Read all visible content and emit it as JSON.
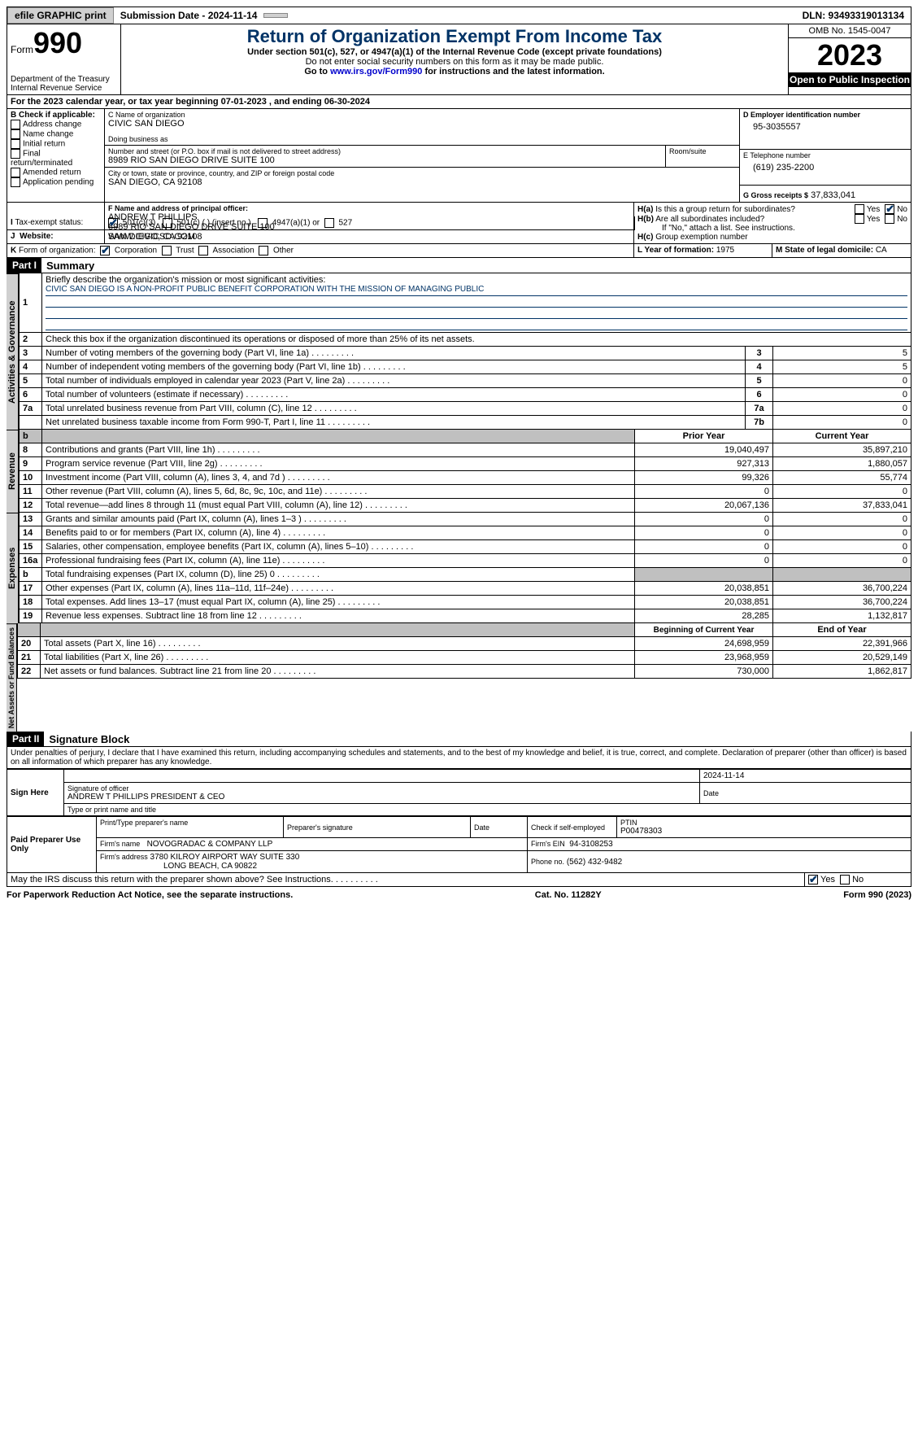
{
  "topbar": {
    "efile": "efile GRAPHIC print",
    "submission_label": "Submission Date - 2024-11-14",
    "dln_label": "DLN: 93493319013134"
  },
  "header": {
    "form_prefix": "Form",
    "form_no": "990",
    "dept1": "Department of the Treasury",
    "dept2": "Internal Revenue Service",
    "title": "Return of Organization Exempt From Income Tax",
    "sub1": "Under section 501(c), 527, or 4947(a)(1) of the Internal Revenue Code (except private foundations)",
    "sub2": "Do not enter social security numbers on this form as it may be made public.",
    "sub3_pre": "Go to ",
    "sub3_link": "www.irs.gov/Form990",
    "sub3_post": " for instructions and the latest information.",
    "omb": "OMB No. 1545-0047",
    "year": "2023",
    "inspect": "Open to Public Inspection"
  },
  "A": {
    "text": "For the 2023 calendar year, or tax year beginning 07-01-2023   , and ending 06-30-2024"
  },
  "B": {
    "label": "B Check if applicable:",
    "opts": [
      "Address change",
      "Name change",
      "Initial return",
      "Final return/terminated",
      "Amended return",
      "Application pending"
    ]
  },
  "C": {
    "name_label": "C Name of organization",
    "name": "CIVIC SAN DIEGO",
    "dba_label": "Doing business as",
    "street_label": "Number and street (or P.O. box if mail is not delivered to street address)",
    "room_label": "Room/suite",
    "street": "8989 RIO SAN DIEGO DRIVE SUITE 100",
    "city_label": "City or town, state or province, country, and ZIP or foreign postal code",
    "city": "SAN DIEGO, CA  92108"
  },
  "D": {
    "label": "D Employer identification number",
    "val": "95-3035557"
  },
  "E": {
    "label": "E Telephone number",
    "val": "(619) 235-2200"
  },
  "G": {
    "label": "G Gross receipts $",
    "val": "37,833,041"
  },
  "F": {
    "label": "F  Name and address of principal officer:",
    "name": "ANDREW T PHILLIPS",
    "street": "8989 RIO SAN DIEGO DRIVE SUITE 100",
    "city": "SAN DIEGO, CA  92108"
  },
  "H": {
    "a": "Is this a group return for subordinates?",
    "b": "Are all subordinates included?",
    "note": "If \"No,\" attach a list. See instructions.",
    "c": "Group exemption number"
  },
  "I": {
    "label": "Tax-exempt status:",
    "o1": "501(c)(3)",
    "o2": "501(c) (  ) (insert no.)",
    "o3": "4947(a)(1) or",
    "o4": "527"
  },
  "J": {
    "label": "Website:",
    "val": "WWW.CIVICSD.COM"
  },
  "K": {
    "label": "Form of organization:",
    "o1": "Corporation",
    "o2": "Trust",
    "o3": "Association",
    "o4": "Other"
  },
  "L": {
    "label": "L Year of formation:",
    "val": "1975"
  },
  "M": {
    "label": "M State of legal domicile:",
    "val": "CA"
  },
  "partI": {
    "hdr": "Part I",
    "title": "Summary",
    "l1a": "Briefly describe the organization's mission or most significant activities:",
    "l1b": "CIVIC SAN DIEGO IS A NON-PROFIT PUBLIC BENEFIT CORPORATION WITH THE MISSION OF MANAGING PUBLIC",
    "l2": "Check this box        if the organization discontinued its operations or disposed of more than 25% of its net assets.",
    "rows_gov": [
      {
        "n": "3",
        "d": "Number of voting members of the governing body (Part VI, line 1a)",
        "k": "3",
        "v": "5"
      },
      {
        "n": "4",
        "d": "Number of independent voting members of the governing body (Part VI, line 1b)",
        "k": "4",
        "v": "5"
      },
      {
        "n": "5",
        "d": "Total number of individuals employed in calendar year 2023 (Part V, line 2a)",
        "k": "5",
        "v": "0"
      },
      {
        "n": "6",
        "d": "Total number of volunteers (estimate if necessary)",
        "k": "6",
        "v": "0"
      },
      {
        "n": "7a",
        "d": "Total unrelated business revenue from Part VIII, column (C), line 12",
        "k": "7a",
        "v": "0"
      },
      {
        "n": "",
        "d": "Net unrelated business taxable income from Form 990-T, Part I, line 11",
        "k": "7b",
        "v": "0"
      }
    ],
    "hdr_prior": "Prior Year",
    "hdr_curr": "Current Year",
    "rows_rev": [
      {
        "n": "8",
        "d": "Contributions and grants (Part VIII, line 1h)",
        "p": "19,040,497",
        "c": "35,897,210"
      },
      {
        "n": "9",
        "d": "Program service revenue (Part VIII, line 2g)",
        "p": "927,313",
        "c": "1,880,057"
      },
      {
        "n": "10",
        "d": "Investment income (Part VIII, column (A), lines 3, 4, and 7d )",
        "p": "99,326",
        "c": "55,774"
      },
      {
        "n": "11",
        "d": "Other revenue (Part VIII, column (A), lines 5, 6d, 8c, 9c, 10c, and 11e)",
        "p": "0",
        "c": "0"
      },
      {
        "n": "12",
        "d": "Total revenue—add lines 8 through 11 (must equal Part VIII, column (A), line 12)",
        "p": "20,067,136",
        "c": "37,833,041"
      }
    ],
    "rows_exp": [
      {
        "n": "13",
        "d": "Grants and similar amounts paid (Part IX, column (A), lines 1–3 )",
        "p": "0",
        "c": "0"
      },
      {
        "n": "14",
        "d": "Benefits paid to or for members (Part IX, column (A), line 4)",
        "p": "0",
        "c": "0"
      },
      {
        "n": "15",
        "d": "Salaries, other compensation, employee benefits (Part IX, column (A), lines 5–10)",
        "p": "0",
        "c": "0"
      },
      {
        "n": "16a",
        "d": "Professional fundraising fees (Part IX, column (A), line 11e)",
        "p": "0",
        "c": "0"
      },
      {
        "n": "b",
        "d": "Total fundraising expenses (Part IX, column (D), line 25) 0",
        "p": "",
        "c": "",
        "shade": true
      },
      {
        "n": "17",
        "d": "Other expenses (Part IX, column (A), lines 11a–11d, 11f–24e)",
        "p": "20,038,851",
        "c": "36,700,224"
      },
      {
        "n": "18",
        "d": "Total expenses. Add lines 13–17 (must equal Part IX, column (A), line 25)",
        "p": "20,038,851",
        "c": "36,700,224"
      },
      {
        "n": "19",
        "d": "Revenue less expenses. Subtract line 18 from line 12",
        "p": "28,285",
        "c": "1,132,817"
      }
    ],
    "hdr_beg": "Beginning of Current Year",
    "hdr_end": "End of Year",
    "rows_net": [
      {
        "n": "20",
        "d": "Total assets (Part X, line 16)",
        "p": "24,698,959",
        "c": "22,391,966"
      },
      {
        "n": "21",
        "d": "Total liabilities (Part X, line 26)",
        "p": "23,968,959",
        "c": "20,529,149"
      },
      {
        "n": "22",
        "d": "Net assets or fund balances. Subtract line 21 from line 20",
        "p": "730,000",
        "c": "1,862,817"
      }
    ],
    "tab_gov": "Activities & Governance",
    "tab_rev": "Revenue",
    "tab_exp": "Expenses",
    "tab_net": "Net Assets or Fund Balances"
  },
  "partII": {
    "hdr": "Part II",
    "title": "Signature Block",
    "decl": "Under penalties of perjury, I declare that I have examined this return, including accompanying schedules and statements, and to the best of my knowledge and belief, it is true, correct, and complete. Declaration of preparer (other than officer) is based on all information of which preparer has any knowledge.",
    "sign_here": "Sign Here",
    "sig_date": "2024-11-14",
    "sig_officer_lbl": "Signature of officer",
    "sig_officer": "ANDREW T PHILLIPS  PRESIDENT & CEO",
    "sig_type_lbl": "Type or print name and title",
    "date_lbl": "Date",
    "paid": "Paid Preparer Use Only",
    "prep_name_lbl": "Print/Type preparer's name",
    "prep_sig_lbl": "Preparer's signature",
    "self_emp": "Check        if self-employed",
    "ptin_lbl": "PTIN",
    "ptin": "P00478303",
    "firm_name_lbl": "Firm's name",
    "firm_name": "NOVOGRADAC & COMPANY LLP",
    "firm_ein_lbl": "Firm's EIN",
    "firm_ein": "94-3108253",
    "firm_addr_lbl": "Firm's address",
    "firm_addr1": "3780 KILROY AIRPORT WAY SUITE 330",
    "firm_addr2": "LONG BEACH, CA  90822",
    "phone_lbl": "Phone no.",
    "phone": "(562) 432-9482",
    "discuss": "May the IRS discuss this return with the preparer shown above? See Instructions.",
    "yes": "Yes",
    "no": "No"
  },
  "footer": {
    "left": "For Paperwork Reduction Act Notice, see the separate instructions.",
    "mid": "Cat. No. 11282Y",
    "right_pre": "Form ",
    "right_bold": "990",
    "right_post": " (2023)"
  }
}
